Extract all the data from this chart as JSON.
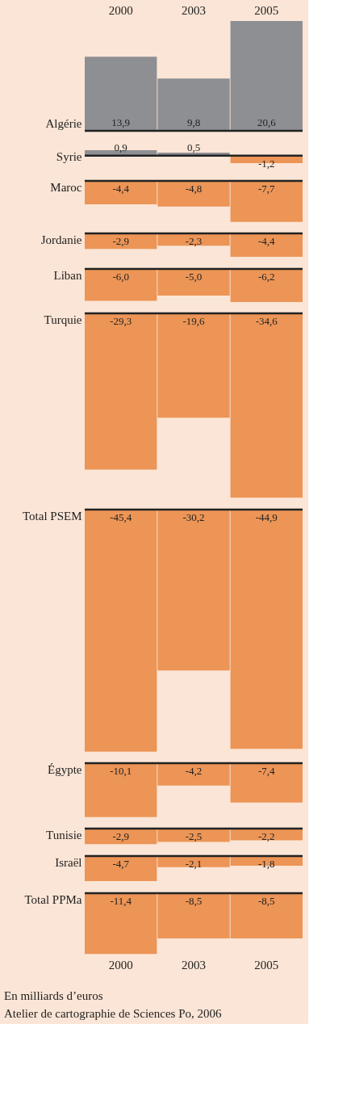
{
  "chart_data": [
    {
      "type": "bar",
      "title": "Algérie",
      "categories": [
        "2000",
        "2003",
        "2005"
      ],
      "values": [
        13.9,
        9.8,
        20.6
      ],
      "colors": [
        "#8e8f93",
        "#8e8f93",
        "#8e8f93"
      ],
      "value_labels": [
        "13,9",
        "9,8",
        "20,6"
      ],
      "tick_labels": "x"
    },
    {
      "type": "bar",
      "title": "Syrie",
      "categories": [
        "2000",
        "2003",
        "2005"
      ],
      "values": [
        0.9,
        0.5,
        -1.2
      ],
      "colors": [
        "#8e8f93",
        "#8e8f93",
        "#ec9556"
      ],
      "value_labels": [
        "0,9",
        "0,5",
        "-1,2"
      ],
      "tick_labels": false
    },
    {
      "type": "bar",
      "title": "Maroc",
      "categories": [
        "2000",
        "2003",
        "2005"
      ],
      "values": [
        -4.4,
        -4.8,
        -7.7
      ],
      "colors": [
        "#ec9556",
        "#ec9556",
        "#ec9556"
      ],
      "value_labels": [
        "-4,4",
        "-4,8",
        "-7,7"
      ],
      "tick_labels": false
    },
    {
      "type": "bar",
      "title": "Jordanie",
      "categories": [
        "2000",
        "2003",
        "2005"
      ],
      "values": [
        -2.9,
        -2.3,
        -4.4
      ],
      "colors": [
        "#ec9556",
        "#ec9556",
        "#ec9556"
      ],
      "value_labels": [
        "-2,9",
        "-2,3",
        "-4,4"
      ],
      "tick_labels": false
    },
    {
      "type": "bar",
      "title": "Liban",
      "categories": [
        "2000",
        "2003",
        "2005"
      ],
      "values": [
        -6.0,
        -5.0,
        -6.2
      ],
      "colors": [
        "#ec9556",
        "#ec9556",
        "#ec9556"
      ],
      "value_labels": [
        "-6,0",
        "-5,0",
        "-6,2"
      ],
      "tick_labels": false
    },
    {
      "type": "bar",
      "title": "Turquie",
      "categories": [
        "2000",
        "2003",
        "2005"
      ],
      "values": [
        -29.3,
        -19.6,
        -34.6
      ],
      "colors": [
        "#ec9556",
        "#ec9556",
        "#ec9556"
      ],
      "value_labels": [
        "-29,3",
        "-19,6",
        "-34,6"
      ],
      "tick_labels": false
    },
    {
      "type": "bar",
      "title": "Total PSEM",
      "categories": [
        "2000",
        "2003",
        "2005"
      ],
      "values": [
        -45.4,
        -30.2,
        -44.9
      ],
      "colors": [
        "#ec9556",
        "#ec9556",
        "#ec9556"
      ],
      "value_labels": [
        "-45,4",
        "-30,2",
        "-44,9"
      ],
      "tick_labels": false
    },
    {
      "type": "bar",
      "title": "Égypte",
      "categories": [
        "2000",
        "2003",
        "2005"
      ],
      "values": [
        -10.1,
        -4.2,
        -7.4
      ],
      "colors": [
        "#ec9556",
        "#ec9556",
        "#ec9556"
      ],
      "value_labels": [
        "-10,1",
        "-4,2",
        "-7,4"
      ],
      "tick_labels": false
    },
    {
      "type": "bar",
      "title": "Tunisie",
      "categories": [
        "2000",
        "2003",
        "2005"
      ],
      "values": [
        -2.9,
        -2.5,
        -2.2
      ],
      "colors": [
        "#ec9556",
        "#ec9556",
        "#ec9556"
      ],
      "value_labels": [
        "-2,9",
        "-2,5",
        "-2,2"
      ],
      "tick_labels": false
    },
    {
      "type": "bar",
      "title": "Israël",
      "categories": [
        "2000",
        "2003",
        "2005"
      ],
      "values": [
        -4.7,
        -2.1,
        -1.8
      ],
      "colors": [
        "#ec9556",
        "#ec9556",
        "#ec9556"
      ],
      "value_labels": [
        "-4,7",
        "-2,1",
        "-1,8"
      ],
      "tick_labels": false
    },
    {
      "type": "bar",
      "title": "Total PPMa",
      "categories": [
        "2000",
        "2003",
        "2005"
      ],
      "values": [
        -11.4,
        -8.5,
        -8.5
      ],
      "colors": [
        "#ec9556",
        "#ec9556",
        "#ec9556"
      ],
      "value_labels": [
        "-11,4",
        "-8,5",
        "-8,5"
      ],
      "tick_labels": "x",
      "annotations": [
        "En milliards d’euros",
        "Atelier de cartographie de Sciences Po, 2006"
      ]
    }
  ]
}
